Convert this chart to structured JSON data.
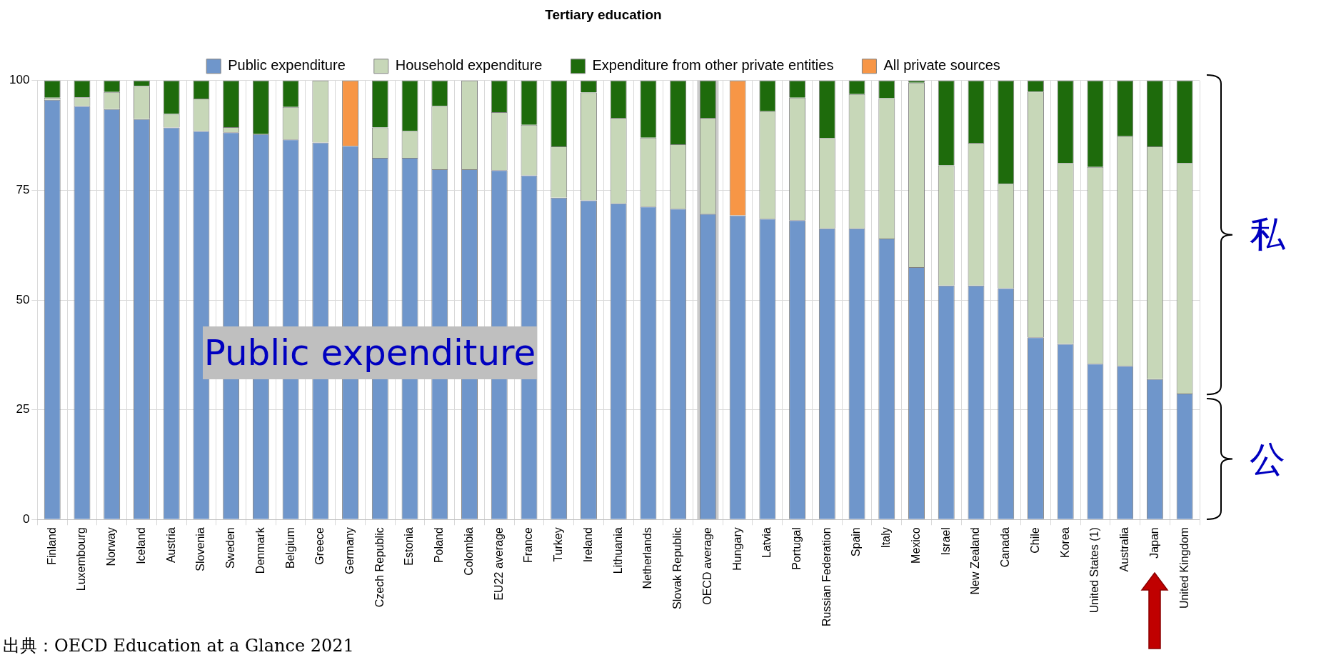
{
  "chart_data": {
    "type": "bar",
    "title": "Tertiary education",
    "stacked": true,
    "legend": "top",
    "grid": true,
    "categories": [
      "Finland",
      "Luxembourg",
      "Norway",
      "Iceland",
      "Austria",
      "Slovenia",
      "Sweden",
      "Denmark",
      "Belgium",
      "Greece",
      "Germany",
      "Czech Republic",
      "Estonia",
      "Poland",
      "Colombia",
      "EU22 average",
      "France",
      "Turkey",
      "Ireland",
      "Lithuania",
      "Netherlands",
      "Slovak Republic",
      "OECD average",
      "Hungary",
      "Latvia",
      "Portugal",
      "Russian Federation",
      "Spain",
      "Italy",
      "Mexico",
      "Israel",
      "New Zealand",
      "Canada",
      "Chile",
      "Korea",
      "United States (1)",
      "Australia",
      "Japan",
      "United Kingdom"
    ],
    "series": [
      {
        "name": "Public expenditure",
        "color": "#6f96cb",
        "values": [
          95.6,
          94.2,
          93.5,
          91.2,
          89.3,
          88.5,
          88.2,
          87.8,
          86.6,
          85.9,
          85.1,
          82.4,
          82.4,
          79.8,
          79.8,
          79.6,
          78.4,
          73.3,
          72.7,
          72,
          71.3,
          70.8,
          69.6,
          69.3,
          68.5,
          68.2,
          66.3,
          66.3,
          64,
          57.5,
          53.3,
          53.3,
          52.7,
          41.5,
          40,
          35.5,
          35,
          32,
          28.7
        ]
      },
      {
        "name": "Household expenditure",
        "color": "#c7d7b8",
        "values": [
          0.5,
          2,
          3.9,
          7.6,
          3.1,
          7.4,
          1.2,
          0,
          7.4,
          14.1,
          null,
          6.9,
          6.1,
          14.4,
          20.2,
          13.2,
          11.5,
          11.7,
          24.6,
          19.5,
          15.7,
          14.7,
          21.9,
          null,
          24.5,
          27.9,
          20.6,
          30.6,
          32,
          42,
          27.4,
          32.5,
          23.8,
          56,
          41.2,
          44.8,
          52.3,
          53,
          52.5
        ]
      },
      {
        "name": "Expenditure from other private entities",
        "color": "#1e6b0c",
        "values": [
          3.9,
          3.8,
          2.6,
          1.2,
          7.6,
          4.1,
          10.6,
          12.2,
          6,
          0,
          null,
          10.7,
          11.5,
          5.8,
          0,
          7.2,
          10.1,
          15,
          2.7,
          8.5,
          13,
          14.5,
          8.5,
          null,
          7,
          3.9,
          13.1,
          3.1,
          4,
          0.5,
          19.3,
          14.2,
          23.5,
          2.5,
          18.8,
          19.7,
          12.7,
          15,
          18.8
        ]
      },
      {
        "name": "All private sources",
        "color": "#f79646",
        "values": [
          null,
          null,
          null,
          null,
          null,
          null,
          null,
          null,
          null,
          null,
          14.9,
          null,
          null,
          null,
          null,
          null,
          null,
          null,
          null,
          null,
          null,
          null,
          null,
          30.7,
          null,
          null,
          null,
          null,
          null,
          null,
          null,
          null,
          null,
          null,
          null,
          null,
          null,
          null,
          null
        ]
      }
    ],
    "ylim": [
      0,
      100
    ],
    "yticks": [
      0,
      25,
      50,
      75,
      100
    ],
    "bands": [
      {
        "axis": "x",
        "from": "OECD average",
        "to": "OECD average",
        "color": "#cccccc"
      }
    ],
    "annotations": [
      "Public expenditure",
      "私",
      "公",
      "出典：OECD Education at a Glance 2021"
    ]
  }
}
